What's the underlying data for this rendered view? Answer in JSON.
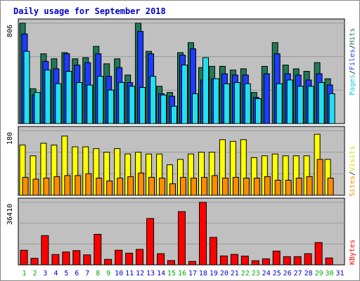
{
  "chart_data": {
    "type": "bar",
    "title": "Daily usage for September 2018",
    "categories": [
      "1",
      "2",
      "3",
      "4",
      "5",
      "6",
      "7",
      "8",
      "9",
      "10",
      "11",
      "12",
      "13",
      "14",
      "15",
      "16",
      "17",
      "18",
      "19",
      "20",
      "21",
      "22",
      "23",
      "24",
      "25",
      "26",
      "27",
      "28",
      "29",
      "30",
      "31"
    ],
    "weekend_days": [
      "1",
      "2",
      "8",
      "9",
      "15",
      "16",
      "22",
      "23",
      "29",
      "30"
    ],
    "panels": [
      {
        "id": "top",
        "y_max": 806,
        "y_tick": "806",
        "series": [
          {
            "name": "Hits",
            "color": "#1f7a57",
            "values": [
              806,
              280,
              560,
              520,
              570,
              520,
              530,
              620,
              480,
              520,
              390,
              806,
              580,
              300,
              250,
              570,
              650,
              450,
              460,
              460,
              430,
              440,
              250,
              460,
              650,
              470,
              440,
              420,
              490,
              360,
              0
            ]
          },
          {
            "name": "Files",
            "color": "#1d3cff",
            "values": [
              720,
              230,
              500,
              440,
              560,
              470,
              490,
              560,
              380,
              450,
              330,
              740,
              560,
              240,
              220,
              550,
              600,
              350,
              360,
              400,
              390,
              390,
              210,
              400,
              560,
              400,
              390,
              350,
              400,
              310,
              0
            ]
          },
          {
            "name": "Pages",
            "color": "#22e0f0",
            "values": [
              580,
              250,
              430,
              320,
              420,
              330,
              310,
              380,
              270,
              330,
              300,
              290,
              380,
              230,
              140,
              470,
              240,
              530,
              360,
              320,
              330,
              320,
              200,
              0,
              320,
              350,
              300,
              300,
              330,
              240,
              0
            ]
          }
        ]
      },
      {
        "id": "middle",
        "y_max": 180,
        "y_tick": "180",
        "series": [
          {
            "name": "Visits",
            "color": "#ffff00",
            "values": [
              140,
              110,
              145,
              140,
              165,
              135,
              135,
              130,
              120,
              130,
              115,
              120,
              115,
              115,
              85,
              100,
              115,
              120,
              120,
              155,
              150,
              155,
              105,
              110,
              115,
              110,
              110,
              110,
              170,
              100,
              0
            ]
          },
          {
            "name": "Sites",
            "color": "#ff8c00",
            "values": [
              50,
              45,
              48,
              52,
              55,
              55,
              60,
              48,
              40,
              48,
              52,
              62,
              50,
              48,
              32,
              50,
              48,
              50,
              55,
              48,
              50,
              48,
              48,
              52,
              42,
              42,
              48,
              52,
              100,
              48,
              0
            ]
          }
        ]
      },
      {
        "id": "bottom",
        "y_max": 36410,
        "y_tick": "36410",
        "series": [
          {
            "name": "KBytes",
            "color": "#ff0000",
            "values": [
              8500,
              3800,
              17000,
              6000,
              7500,
              8300,
              5800,
              17800,
              3200,
              8500,
              6800,
              9000,
              27000,
              6500,
              2500,
              31000,
              2000,
              36410,
              16000,
              5200,
              6100,
              5100,
              2400,
              3500,
              8000,
              4800,
              4800,
              6500,
              13000,
              4000,
              0
            ]
          }
        ]
      }
    ],
    "legend_top": [
      "Pages",
      "/",
      "Files",
      "/",
      "Hits"
    ],
    "legend_middle": [
      "Sites",
      "/",
      "Visits"
    ],
    "legend_bottom": [
      "KBytes"
    ]
  },
  "colors": {
    "plot_bg": "#c0c0c0",
    "title": "#0000cc",
    "weekday_label": "#0000cc",
    "weekend_label": "#00aa00",
    "grid": "#9a9a9a"
  }
}
